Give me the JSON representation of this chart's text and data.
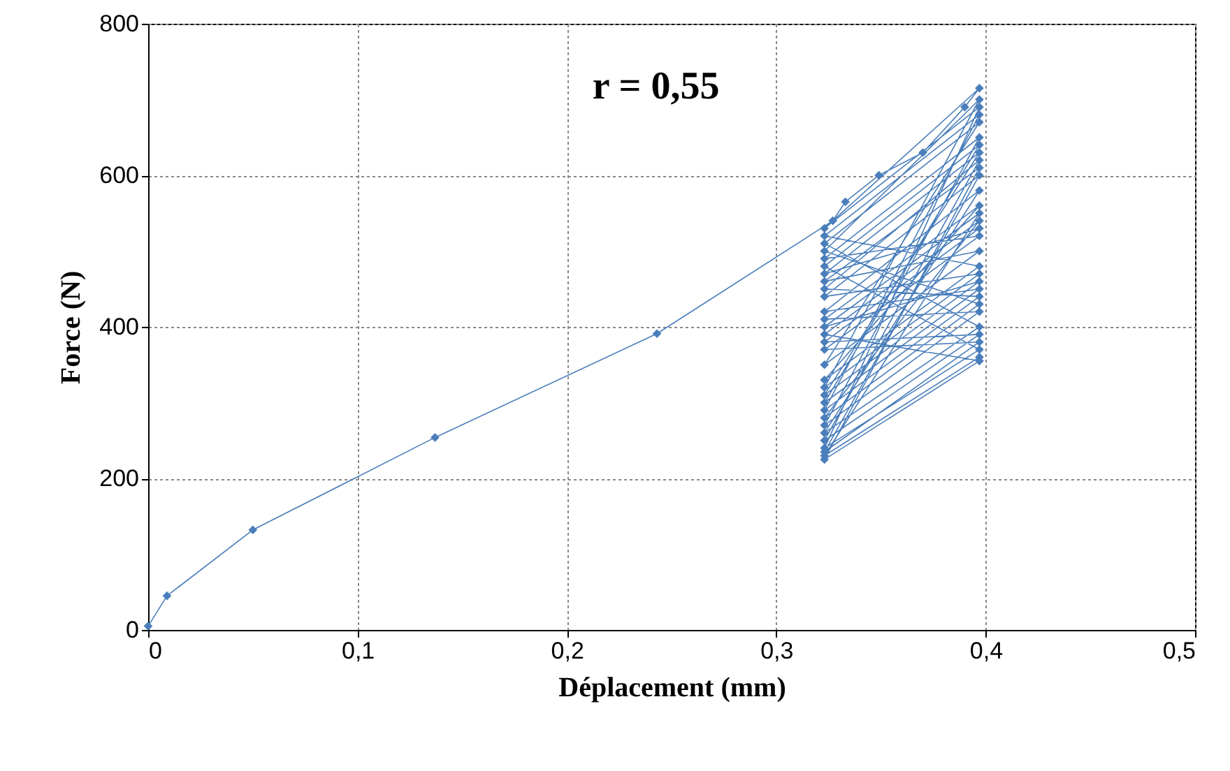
{
  "chart_data": {
    "type": "line",
    "xlabel": "Déplacement (mm)",
    "ylabel": "Force (N)",
    "annotations": [
      "r = 0,55"
    ],
    "xlim": [
      0,
      0.5
    ],
    "ylim": [
      0,
      800
    ],
    "xticks": [
      0,
      {
        "value": 0.1,
        "label": "0,1"
      },
      {
        "value": 0.2,
        "label": "0,2"
      },
      {
        "value": 0.3,
        "label": "0,3"
      },
      {
        "value": 0.4,
        "label": "0,4"
      },
      {
        "value": 0.5,
        "label": "0,5"
      }
    ],
    "yticks": [
      0,
      200,
      400,
      600,
      800
    ],
    "grid": true,
    "marker": "diamond",
    "line_style": "solid",
    "series": [
      {
        "color": "#4a7ebb",
        "x": [
          0,
          0.009,
          0.05,
          0.137,
          0.243,
          0.327,
          0.333,
          0.349,
          0.37,
          0.39,
          0.397,
          0.323,
          0.397,
          0.323,
          0.397,
          0.323,
          0.397,
          0.323,
          0.397,
          0.323,
          0.397,
          0.323,
          0.397,
          0.323,
          0.397,
          0.323,
          0.397,
          0.323,
          0.397,
          0.323,
          0.397,
          0.323,
          0.397,
          0.323,
          0.397,
          0.323,
          0.397,
          0.323,
          0.397,
          0.323,
          0.397,
          0.323,
          0.397,
          0.323,
          0.397,
          0.323,
          0.397,
          0.323,
          0.397,
          0.323,
          0.397,
          0.323,
          0.397,
          0.323,
          0.397,
          0.323,
          0.397,
          0.323,
          0.397,
          0.323,
          0.397,
          0.323,
          0.397,
          0.323,
          0.397,
          0.323,
          0.397,
          0.323,
          0.397,
          0.323,
          0.397
        ],
        "values": [
          5,
          45,
          132,
          254,
          391,
          540,
          565,
          600,
          630,
          690,
          715,
          530,
          690,
          240,
          370,
          480,
          640,
          300,
          450,
          420,
          580,
          260,
          400,
          510,
          670,
          350,
          500,
          460,
          610,
          225,
          355,
          390,
          540,
          280,
          430,
          500,
          700,
          320,
          470,
          440,
          600,
          235,
          380,
          370,
          520,
          490,
          650,
          270,
          420,
          410,
          560,
          330,
          480,
          520,
          680,
          290,
          440,
          450,
          620,
          250,
          390,
          380,
          530,
          470,
          630,
          310,
          460,
          400,
          550,
          230,
          360
        ]
      }
    ]
  }
}
